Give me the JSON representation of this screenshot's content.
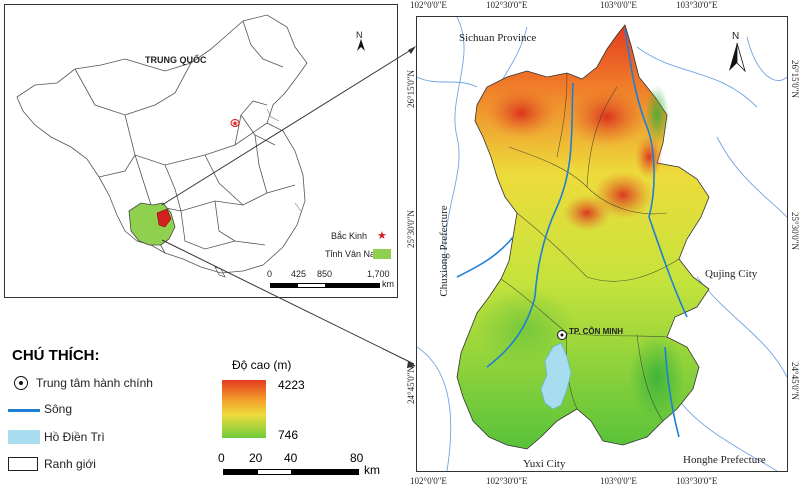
{
  "inset": {
    "country_label": "TRUNG QUỐC",
    "legend": [
      {
        "label": "Bắc Kinh",
        "symbol": "star",
        "color": "#d42020"
      },
      {
        "label": "Tỉnh Vân Nam",
        "symbol": "fill",
        "color": "#8fd14f"
      }
    ],
    "scale_ticks": [
      "0",
      "425",
      "850",
      "1,700"
    ],
    "scale_unit": "km",
    "north": "N"
  },
  "main_map": {
    "place_labels": {
      "sichuan": "Sichuan Province",
      "chuxiong": "Chuxiong Prefecture",
      "qujing": "Qujing City",
      "yuxi": "Yuxi City",
      "honghe": "Honghe Prefecture",
      "capital": "TP. CÔN MINH"
    },
    "coords_top": [
      "102°0'0\"E",
      "102°30'0\"E",
      "103°0'0\"E",
      "103°30'0\"E"
    ],
    "coords_bottom": [
      "102°0'0\"E",
      "102°30'0\"E",
      "103°0'0\"E",
      "103°30'0\"E"
    ],
    "coords_left": [
      "26°15'0\"N",
      "25°30'0\"N",
      "24°45'0\"N"
    ],
    "coords_right": [
      "26°15'0\"N",
      "25°30'0\"N",
      "24°45'0\"N"
    ],
    "north": "N"
  },
  "legend": {
    "title": "CHÚ THÍCH:",
    "items": [
      {
        "label": "Trung tâm hành chính",
        "symbol": "admin-center-icon"
      },
      {
        "label": "Sông",
        "symbol": "river-line",
        "color": "#1e7fd6"
      },
      {
        "label": "Hồ Điền Trì",
        "symbol": "lake-fill",
        "color": "#a8dcef"
      },
      {
        "label": "Ranh giới",
        "symbol": "boundary-box"
      }
    ],
    "elevation": {
      "title": "Độ cao (m)",
      "max": "4223",
      "min": "746"
    },
    "scale_ticks": [
      "0",
      "20",
      "40",
      "80"
    ],
    "scale_unit": "km"
  },
  "colors": {
    "river": "#1e7fd6",
    "lake": "#a8dcef",
    "yunnan": "#8fd14f",
    "beijing": "#d42020",
    "high": "#e02a1c",
    "mid": "#f2e23a",
    "low": "#2bb33a"
  }
}
